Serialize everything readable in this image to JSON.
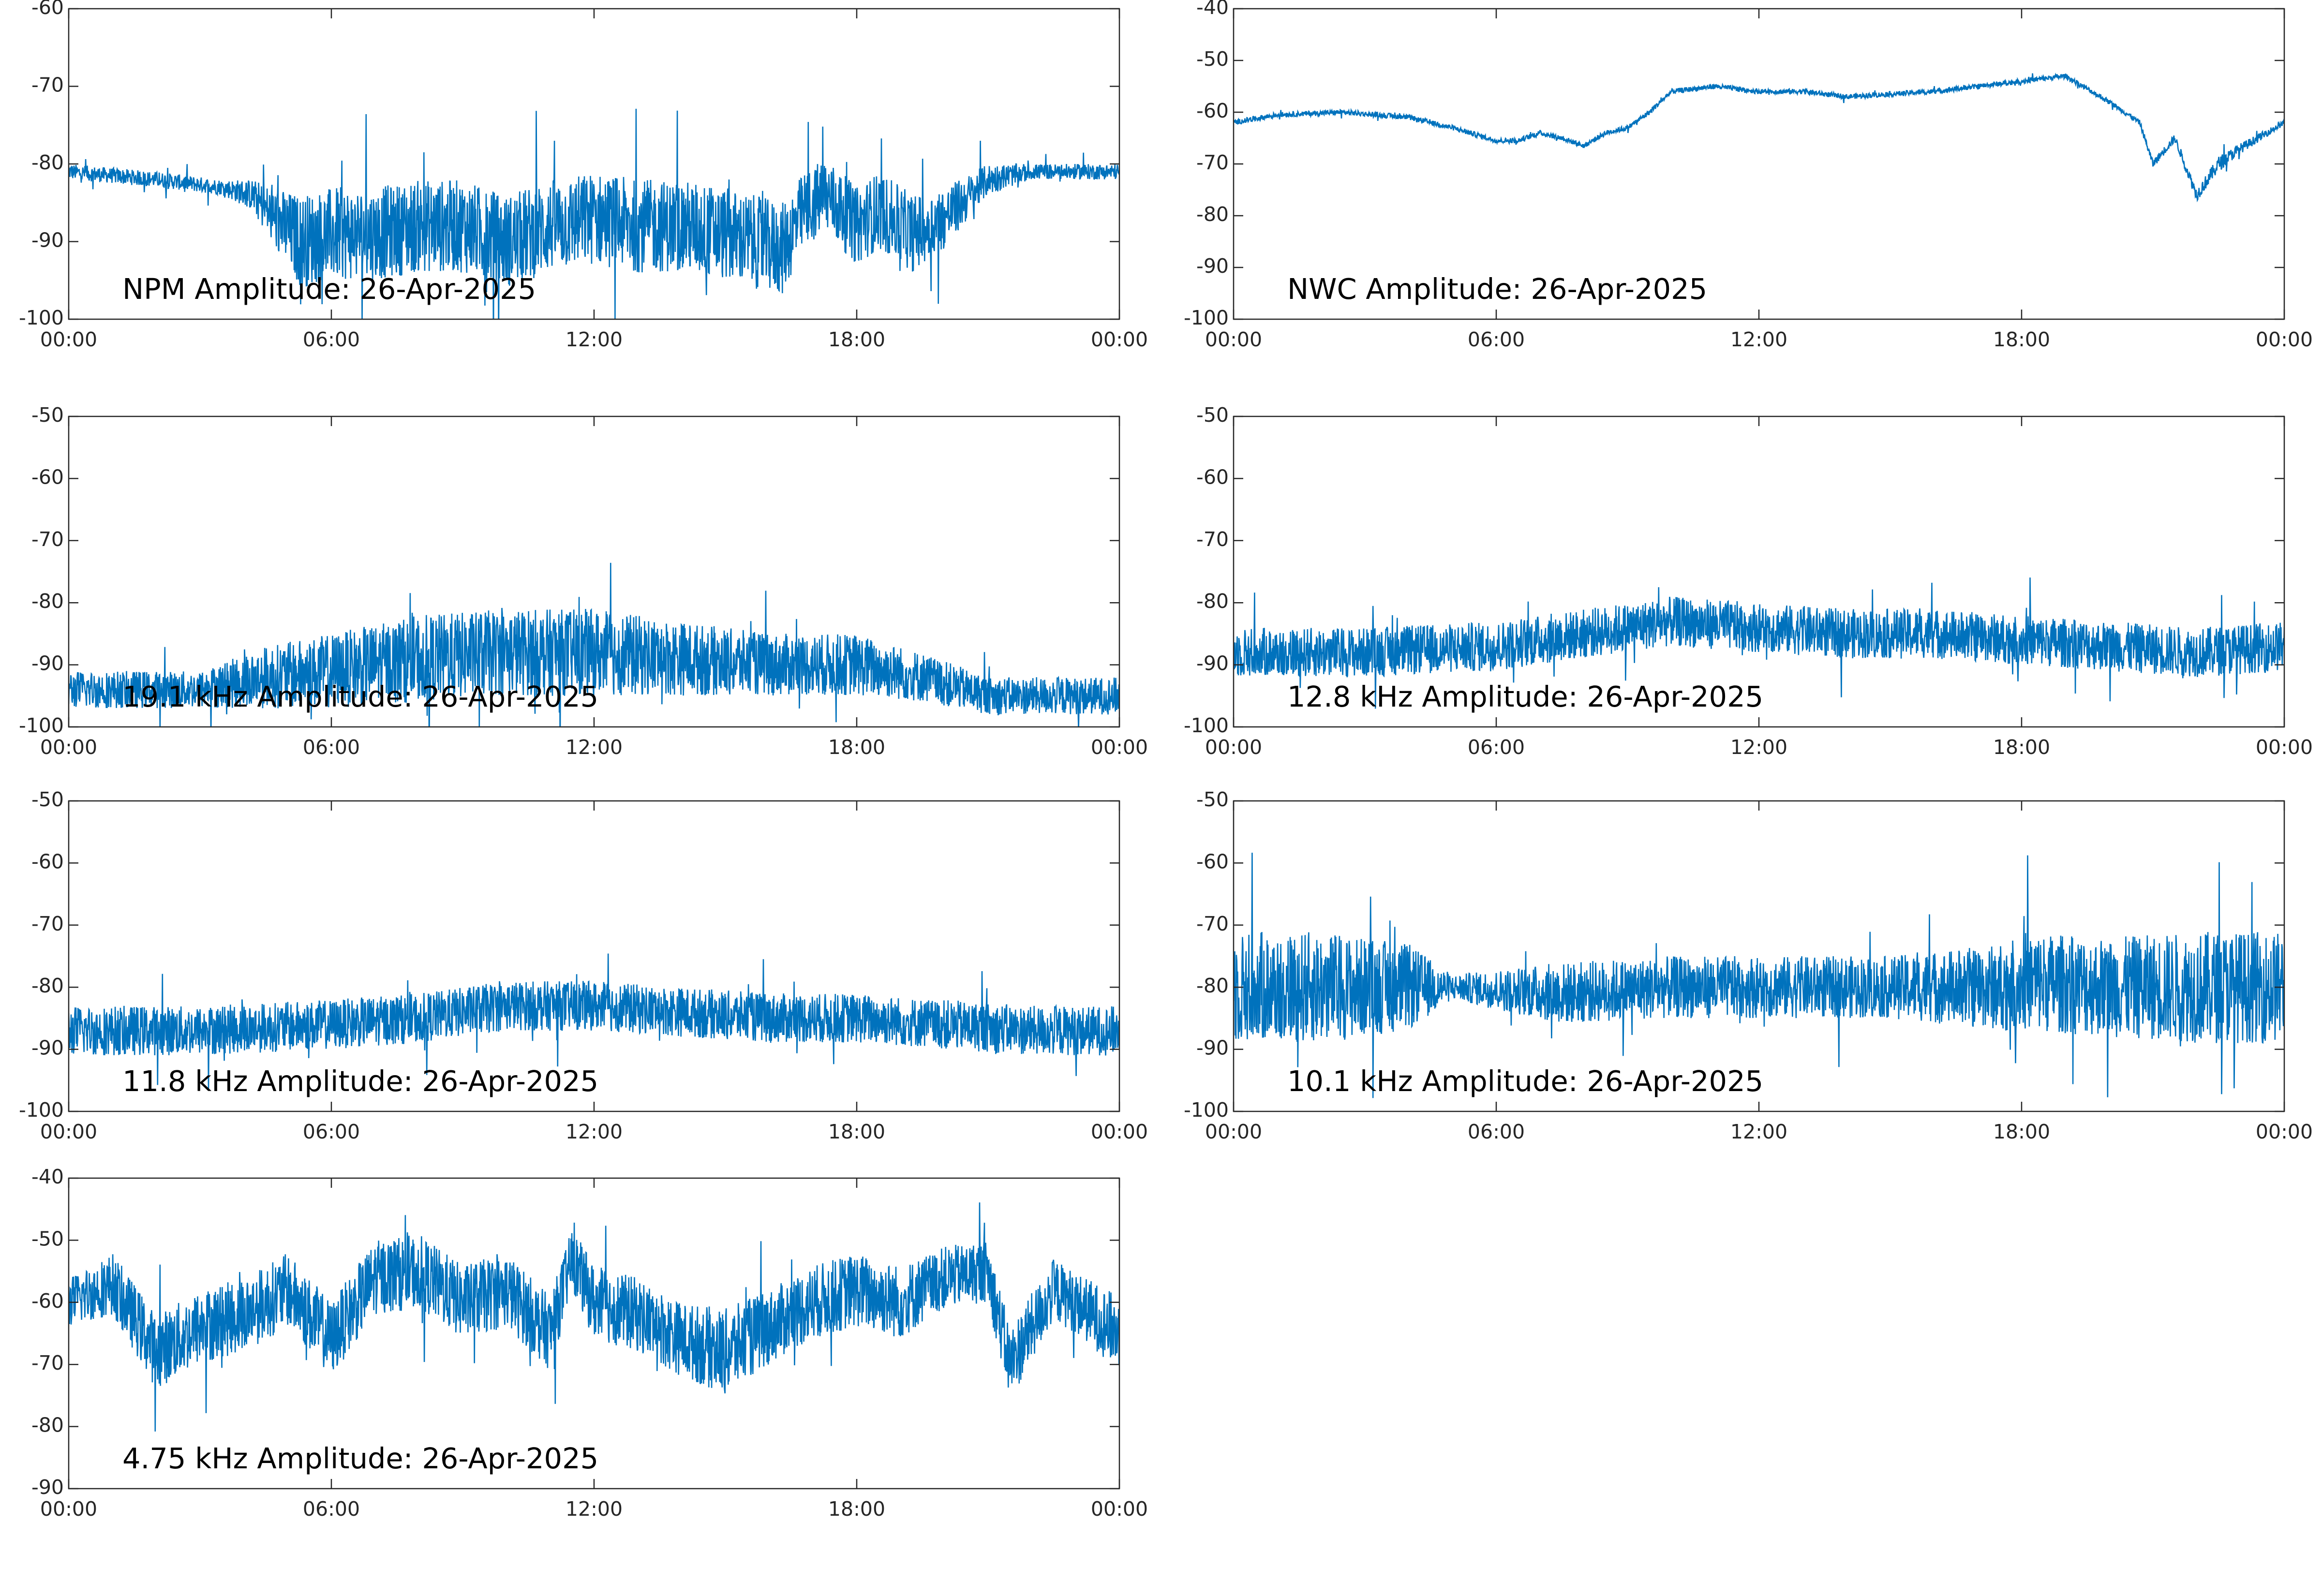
{
  "colors": {
    "series": "#0072BD",
    "axis": "#262626",
    "background": "#ffffff"
  },
  "chart_data": [
    {
      "type": "line",
      "title": "NPM Amplitude: 26-Apr-2025",
      "xlabel": "",
      "ylabel": "",
      "x_ticks": [
        "00:00",
        "06:00",
        "12:00",
        "18:00",
        "00:00"
      ],
      "xlim_hours": [
        0,
        24
      ],
      "ylim": [
        -100,
        -60
      ],
      "y_ticks": [
        -60,
        -70,
        -80,
        -90,
        -100
      ],
      "grid": false,
      "series": [
        {
          "x_hours": [
            0,
            2,
            3.5,
            4.2,
            4.7,
            5.3,
            6,
            7,
            8,
            9,
            10,
            11,
            12,
            13,
            14,
            15,
            16.3,
            16.8,
            17.3,
            18,
            18.5,
            19.3,
            20,
            21,
            22,
            23,
            24
          ],
          "values": [
            -81,
            -82,
            -83,
            -84,
            -87,
            -90,
            -89,
            -89,
            -88,
            -88,
            -90,
            -88,
            -87,
            -88,
            -88,
            -89,
            -91,
            -86,
            -84,
            -88,
            -86,
            -89,
            -87,
            -82,
            -81,
            -81,
            -81
          ],
          "noise": [
            1,
            1,
            1,
            2,
            4,
            6,
            6,
            6,
            6,
            6,
            6,
            6,
            6,
            6,
            6,
            6,
            6,
            5,
            5,
            5,
            5,
            5,
            4,
            2,
            1,
            1,
            1
          ]
        }
      ]
    },
    {
      "type": "line",
      "title": "NWC Amplitude: 26-Apr-2025",
      "xlabel": "",
      "ylabel": "",
      "x_ticks": [
        "00:00",
        "06:00",
        "12:00",
        "18:00",
        "00:00"
      ],
      "xlim_hours": [
        0,
        24
      ],
      "ylim": [
        -100,
        -40
      ],
      "y_ticks": [
        -40,
        -50,
        -60,
        -70,
        -80,
        -90,
        -100
      ],
      "grid": false,
      "series": [
        {
          "x_hours": [
            0,
            1,
            2.5,
            4,
            5,
            6,
            6.5,
            7,
            7.5,
            8,
            8.5,
            9,
            9.5,
            10,
            11,
            12,
            13,
            14,
            15,
            16,
            17,
            18,
            19,
            20,
            20.7,
            21,
            21.5,
            22,
            22.5,
            23,
            24
          ],
          "values": [
            -62,
            -60.5,
            -60,
            -61,
            -63,
            -65.5,
            -65.5,
            -64,
            -65,
            -66.5,
            -64,
            -63,
            -60,
            -56,
            -55,
            -56,
            -56,
            -57,
            -56.5,
            -56,
            -55,
            -54,
            -53,
            -58,
            -62,
            -70,
            -65,
            -76,
            -70,
            -67,
            -62
          ],
          "noise": [
            0.5,
            0.5,
            0.5,
            0.5,
            0.5,
            0.5,
            0.5,
            0.5,
            0.5,
            0.5,
            0.5,
            0.5,
            0.5,
            0.5,
            0.5,
            0.5,
            0.5,
            0.5,
            0.5,
            0.5,
            0.5,
            0.5,
            0.5,
            0.5,
            0.5,
            0.8,
            0.8,
            1.2,
            1.5,
            1,
            0.5
          ]
        }
      ]
    },
    {
      "type": "line",
      "title": "19.1 kHz Amplitude: 26-Apr-2025",
      "xlabel": "",
      "ylabel": "",
      "x_ticks": [
        "00:00",
        "06:00",
        "12:00",
        "18:00",
        "00:00"
      ],
      "xlim_hours": [
        0,
        24
      ],
      "ylim": [
        -100,
        -50
      ],
      "y_ticks": [
        -50,
        -60,
        -70,
        -80,
        -90,
        -100
      ],
      "grid": false,
      "series": [
        {
          "x_hours": [
            0,
            3,
            4.5,
            6,
            8,
            10,
            12,
            14,
            16,
            18,
            19.5,
            21,
            24
          ],
          "values": [
            -94,
            -94,
            -92,
            -91,
            -89,
            -88,
            -88,
            -89,
            -90,
            -90,
            -92,
            -95,
            -95
          ],
          "noise": [
            3,
            3,
            5,
            6,
            7,
            7,
            7,
            6,
            5,
            5,
            4,
            3,
            3
          ]
        }
      ]
    },
    {
      "type": "line",
      "title": "12.8 kHz Amplitude: 26-Apr-2025",
      "xlabel": "",
      "ylabel": "",
      "x_ticks": [
        "00:00",
        "06:00",
        "12:00",
        "18:00",
        "00:00"
      ],
      "xlim_hours": [
        0,
        24
      ],
      "ylim": [
        -100,
        -50
      ],
      "y_ticks": [
        -50,
        -60,
        -70,
        -80,
        -90,
        -100
      ],
      "grid": false,
      "series": [
        {
          "x_hours": [
            0,
            3,
            6,
            8,
            10,
            12,
            14,
            16,
            18,
            20,
            22,
            24
          ],
          "values": [
            -88,
            -88,
            -87,
            -85,
            -83,
            -84,
            -85,
            -85,
            -86,
            -87,
            -88,
            -87
          ],
          "noise": [
            4,
            4,
            4,
            4,
            4,
            4,
            4,
            4,
            4,
            4,
            4,
            4
          ]
        }
      ]
    },
    {
      "type": "line",
      "title": "11.8 kHz Amplitude: 26-Apr-2025",
      "xlabel": "",
      "ylabel": "",
      "x_ticks": [
        "00:00",
        "06:00",
        "12:00",
        "18:00",
        "00:00"
      ],
      "xlim_hours": [
        0,
        24
      ],
      "ylim": [
        -100,
        -50
      ],
      "y_ticks": [
        -50,
        -60,
        -70,
        -80,
        -90,
        -100
      ],
      "grid": false,
      "series": [
        {
          "x_hours": [
            0,
            3,
            6,
            8,
            10,
            12,
            14,
            16,
            18,
            20,
            22,
            24
          ],
          "values": [
            -87,
            -87,
            -86,
            -85,
            -83,
            -83,
            -84,
            -85,
            -85,
            -86,
            -87,
            -87
          ],
          "noise": [
            4,
            4,
            4,
            4,
            4,
            4,
            4,
            4,
            4,
            4,
            4,
            4
          ]
        }
      ]
    },
    {
      "type": "line",
      "title": "10.1 kHz Amplitude: 26-Apr-2025",
      "xlabel": "",
      "ylabel": "",
      "x_ticks": [
        "00:00",
        "06:00",
        "12:00",
        "18:00",
        "00:00"
      ],
      "xlim_hours": [
        0,
        24
      ],
      "ylim": [
        -100,
        -50
      ],
      "y_ticks": [
        -50,
        -60,
        -70,
        -80,
        -90,
        -100
      ],
      "grid": false,
      "series": [
        {
          "x_hours": [
            0,
            2,
            4,
            5,
            7.5,
            10,
            12,
            15,
            17.5,
            18,
            20,
            22,
            24
          ],
          "values": [
            -80,
            -80,
            -80,
            -80,
            -81,
            -80,
            -80,
            -80,
            -80,
            -79,
            -80,
            -80,
            -80
          ],
          "noise": [
            9,
            9,
            7,
            2,
            5,
            5,
            5,
            5,
            7,
            8,
            8,
            9,
            9
          ]
        }
      ]
    },
    {
      "type": "line",
      "title": "4.75 kHz Amplitude: 26-Apr-2025",
      "xlabel": "",
      "ylabel": "",
      "x_ticks": [
        "00:00",
        "06:00",
        "12:00",
        "18:00",
        "00:00"
      ],
      "xlim_hours": [
        0,
        24
      ],
      "ylim": [
        -90,
        -40
      ],
      "y_ticks": [
        -40,
        -50,
        -60,
        -70,
        -80,
        -90
      ],
      "grid": false,
      "series": [
        {
          "x_hours": [
            0,
            1,
            2,
            3,
            4,
            5,
            6,
            7,
            8,
            9,
            10,
            11,
            11.5,
            12,
            13,
            14,
            15,
            16,
            17,
            18,
            19,
            20,
            21,
            21.5,
            22.5,
            23,
            24
          ],
          "values": [
            -60,
            -57,
            -68,
            -64,
            -62,
            -58,
            -66,
            -56,
            -55,
            -60,
            -58,
            -65,
            -53,
            -60,
            -62,
            -66,
            -68,
            -64,
            -60,
            -58,
            -60,
            -56,
            -55,
            -70,
            -58,
            -60,
            -65
          ],
          "noise": [
            4,
            5,
            6,
            6,
            6,
            6,
            6,
            6,
            6,
            6,
            6,
            6,
            5,
            6,
            6,
            6,
            7,
            6,
            6,
            6,
            6,
            5,
            5,
            6,
            5,
            5,
            6
          ]
        }
      ]
    }
  ]
}
